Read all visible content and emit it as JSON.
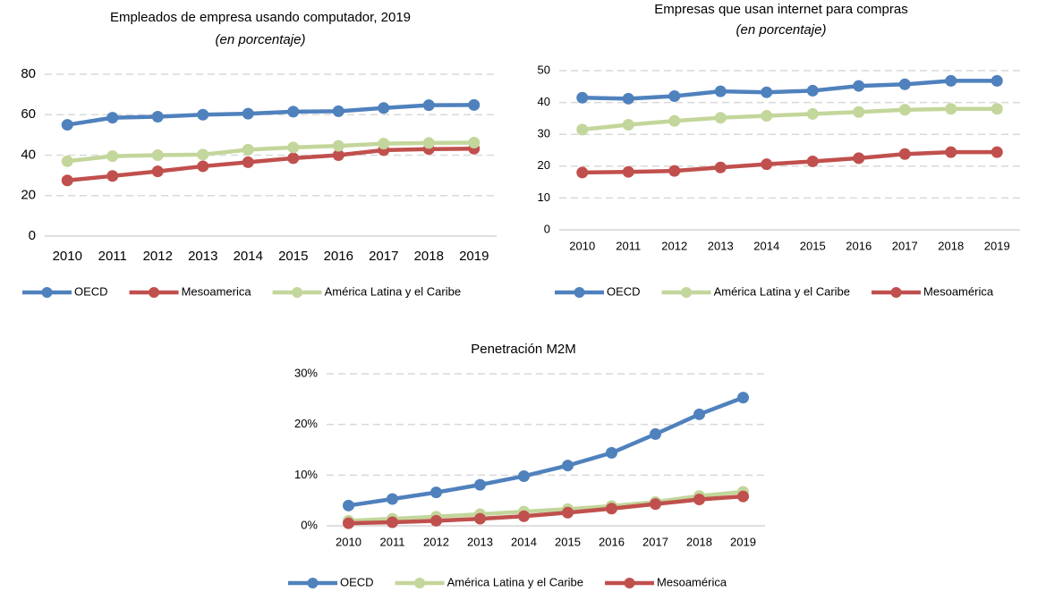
{
  "chart_data": [
    {
      "type": "line",
      "title": "Empleados de empresa usando computador, 2019",
      "subtitle": "(en porcentaje)",
      "categories": [
        "2010",
        "2011",
        "2012",
        "2013",
        "2014",
        "2015",
        "2016",
        "2017",
        "2018",
        "2019"
      ],
      "series": [
        {
          "name": "OECD",
          "color": "#4f81bd",
          "values": [
            55,
            58.5,
            59,
            60,
            60.5,
            61.5,
            61.7,
            63.3,
            64.7,
            64.8
          ]
        },
        {
          "name": "Mesoamerica",
          "color": "#c0504d",
          "values": [
            27.5,
            29.7,
            32,
            34.5,
            36.5,
            38.5,
            40,
            42.5,
            43,
            43.2
          ]
        },
        {
          "name": "América Latina y el Caribe",
          "color": "#c3d69b",
          "values": [
            37,
            39.5,
            40,
            40.3,
            42.7,
            43.8,
            44.6,
            45.7,
            46,
            46.2
          ]
        }
      ],
      "ylim": [
        0,
        80
      ],
      "yticks": [
        0,
        20,
        40,
        60,
        80
      ],
      "grid": true
    },
    {
      "type": "line",
      "title": "Empresas que usan internet para compras",
      "subtitle": "(en porcentaje)",
      "categories": [
        "2010",
        "2011",
        "2012",
        "2013",
        "2014",
        "2015",
        "2016",
        "2017",
        "2018",
        "2019"
      ],
      "series": [
        {
          "name": "OECD",
          "color": "#4f81bd",
          "values": [
            41.5,
            41.2,
            42,
            43.5,
            43.2,
            43.7,
            45.2,
            45.7,
            46.8,
            46.8
          ]
        },
        {
          "name": "América Latina y el Caribe",
          "color": "#c3d69b",
          "values": [
            31.5,
            33,
            34.2,
            35.2,
            35.8,
            36.4,
            37,
            37.7,
            38,
            38
          ]
        },
        {
          "name": "Mesoamérica",
          "color": "#c0504d",
          "values": [
            18,
            18.2,
            18.5,
            19.6,
            20.6,
            21.5,
            22.5,
            23.8,
            24.4,
            24.4
          ]
        }
      ],
      "ylim": [
        0,
        50
      ],
      "yticks": [
        0,
        10,
        20,
        30,
        40,
        50
      ],
      "grid": true
    },
    {
      "type": "line",
      "title": "Penetración M2M",
      "categories": [
        "2010",
        "2011",
        "2012",
        "2013",
        "2014",
        "2015",
        "2016",
        "2017",
        "2018",
        "2019"
      ],
      "series": [
        {
          "name": "OECD",
          "color": "#4f81bd",
          "values": [
            4,
            5.3,
            6.6,
            8.1,
            9.8,
            11.9,
            14.4,
            18.1,
            22,
            25.3
          ]
        },
        {
          "name": "América Latina y el Caribe",
          "color": "#c3d69b",
          "values": [
            1,
            1.4,
            1.8,
            2.3,
            2.8,
            3.3,
            3.9,
            4.7,
            5.9,
            6.7
          ]
        },
        {
          "name": "Mesoamérica",
          "color": "#c0504d",
          "values": [
            0.5,
            0.7,
            1,
            1.4,
            1.9,
            2.6,
            3.4,
            4.3,
            5.2,
            5.8
          ]
        }
      ],
      "ylim": [
        0,
        30
      ],
      "yticks": [
        {
          "value": 0,
          "label": "0%"
        },
        {
          "value": 10,
          "label": "10%"
        },
        {
          "value": 20,
          "label": "20%"
        },
        {
          "value": 30,
          "label": "30%"
        }
      ],
      "grid": true
    }
  ]
}
